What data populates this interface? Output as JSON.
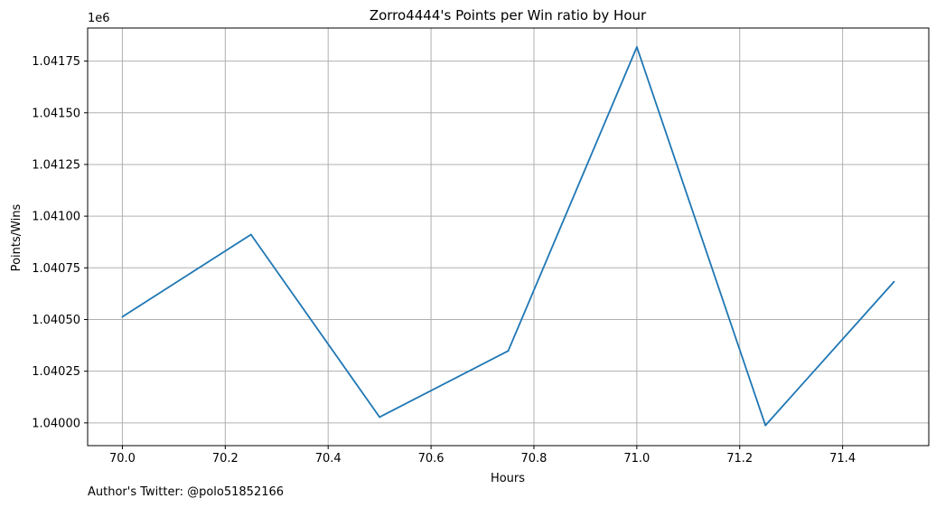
{
  "chart_data": {
    "type": "line",
    "title": "Zorro4444's Points per Win ratio by Hour",
    "xlabel": "Hours",
    "ylabel": "Points/Wins",
    "y_offset_label": "1e6",
    "xlim": [
      69.9325,
      71.5675
    ],
    "ylim": [
      1.03989,
      1.04191
    ],
    "x_ticks": [
      70.0,
      70.2,
      70.4,
      70.6,
      70.8,
      71.0,
      71.2,
      71.4
    ],
    "x_tick_labels": [
      "70.0",
      "70.2",
      "70.4",
      "70.6",
      "70.8",
      "71.0",
      "71.2",
      "71.4"
    ],
    "y_ticks": [
      1.04,
      1.04025,
      1.0405,
      1.04075,
      1.041,
      1.04125,
      1.0415,
      1.04175
    ],
    "y_tick_labels": [
      "1.04000",
      "1.04025",
      "1.04050",
      "1.04075",
      "1.04100",
      "1.04125",
      "1.04150",
      "1.04175"
    ],
    "grid": true,
    "line_color": "#1f77b4",
    "series": [
      {
        "x": [
          70.0,
          70.25,
          70.5,
          70.75,
          71.0,
          71.25,
          71.5
        ],
        "values": [
          1.040513,
          1.040911,
          1.040028,
          1.040348,
          1.041818,
          1.039988,
          1.040683
        ]
      }
    ]
  },
  "footnote": "Author's Twitter: @polo51852166"
}
